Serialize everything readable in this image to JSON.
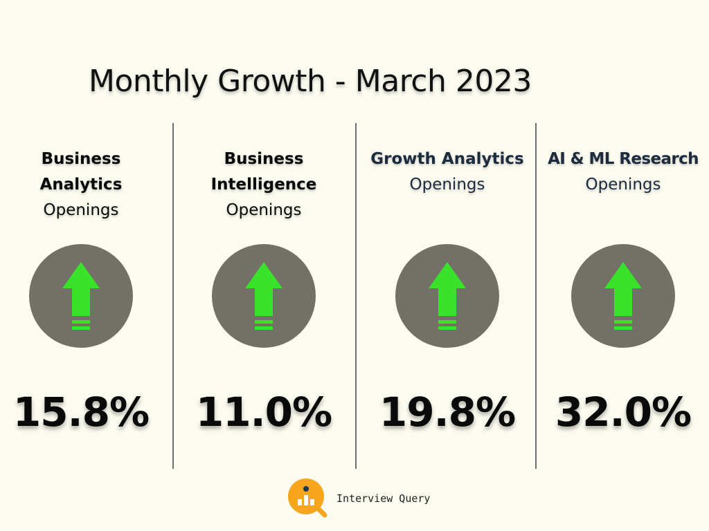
{
  "title": "Monthly Growth - March 2023",
  "columns": [
    {
      "name": "Business Analytics",
      "sublabel": "Openings",
      "value": "15.8%",
      "trend": "up"
    },
    {
      "name": "Business Intelligence",
      "sublabel": "Openings",
      "value": "11.0%",
      "trend": "up"
    },
    {
      "name": "Growth Analytics",
      "sublabel": "Openings",
      "value": "19.8%",
      "trend": "up"
    },
    {
      "name": "AI & ML Research",
      "sublabel": "Openings",
      "value": "32.0%",
      "trend": "up"
    }
  ],
  "brand": {
    "name": "Interview Query",
    "logo_icon": "magnifier-chart-icon"
  },
  "colors": {
    "background": "#fbfbf0",
    "circle": "#737068",
    "arrow": "#39e22b",
    "logo": "#f7a51c",
    "dark_text": "#1d2b3e"
  }
}
